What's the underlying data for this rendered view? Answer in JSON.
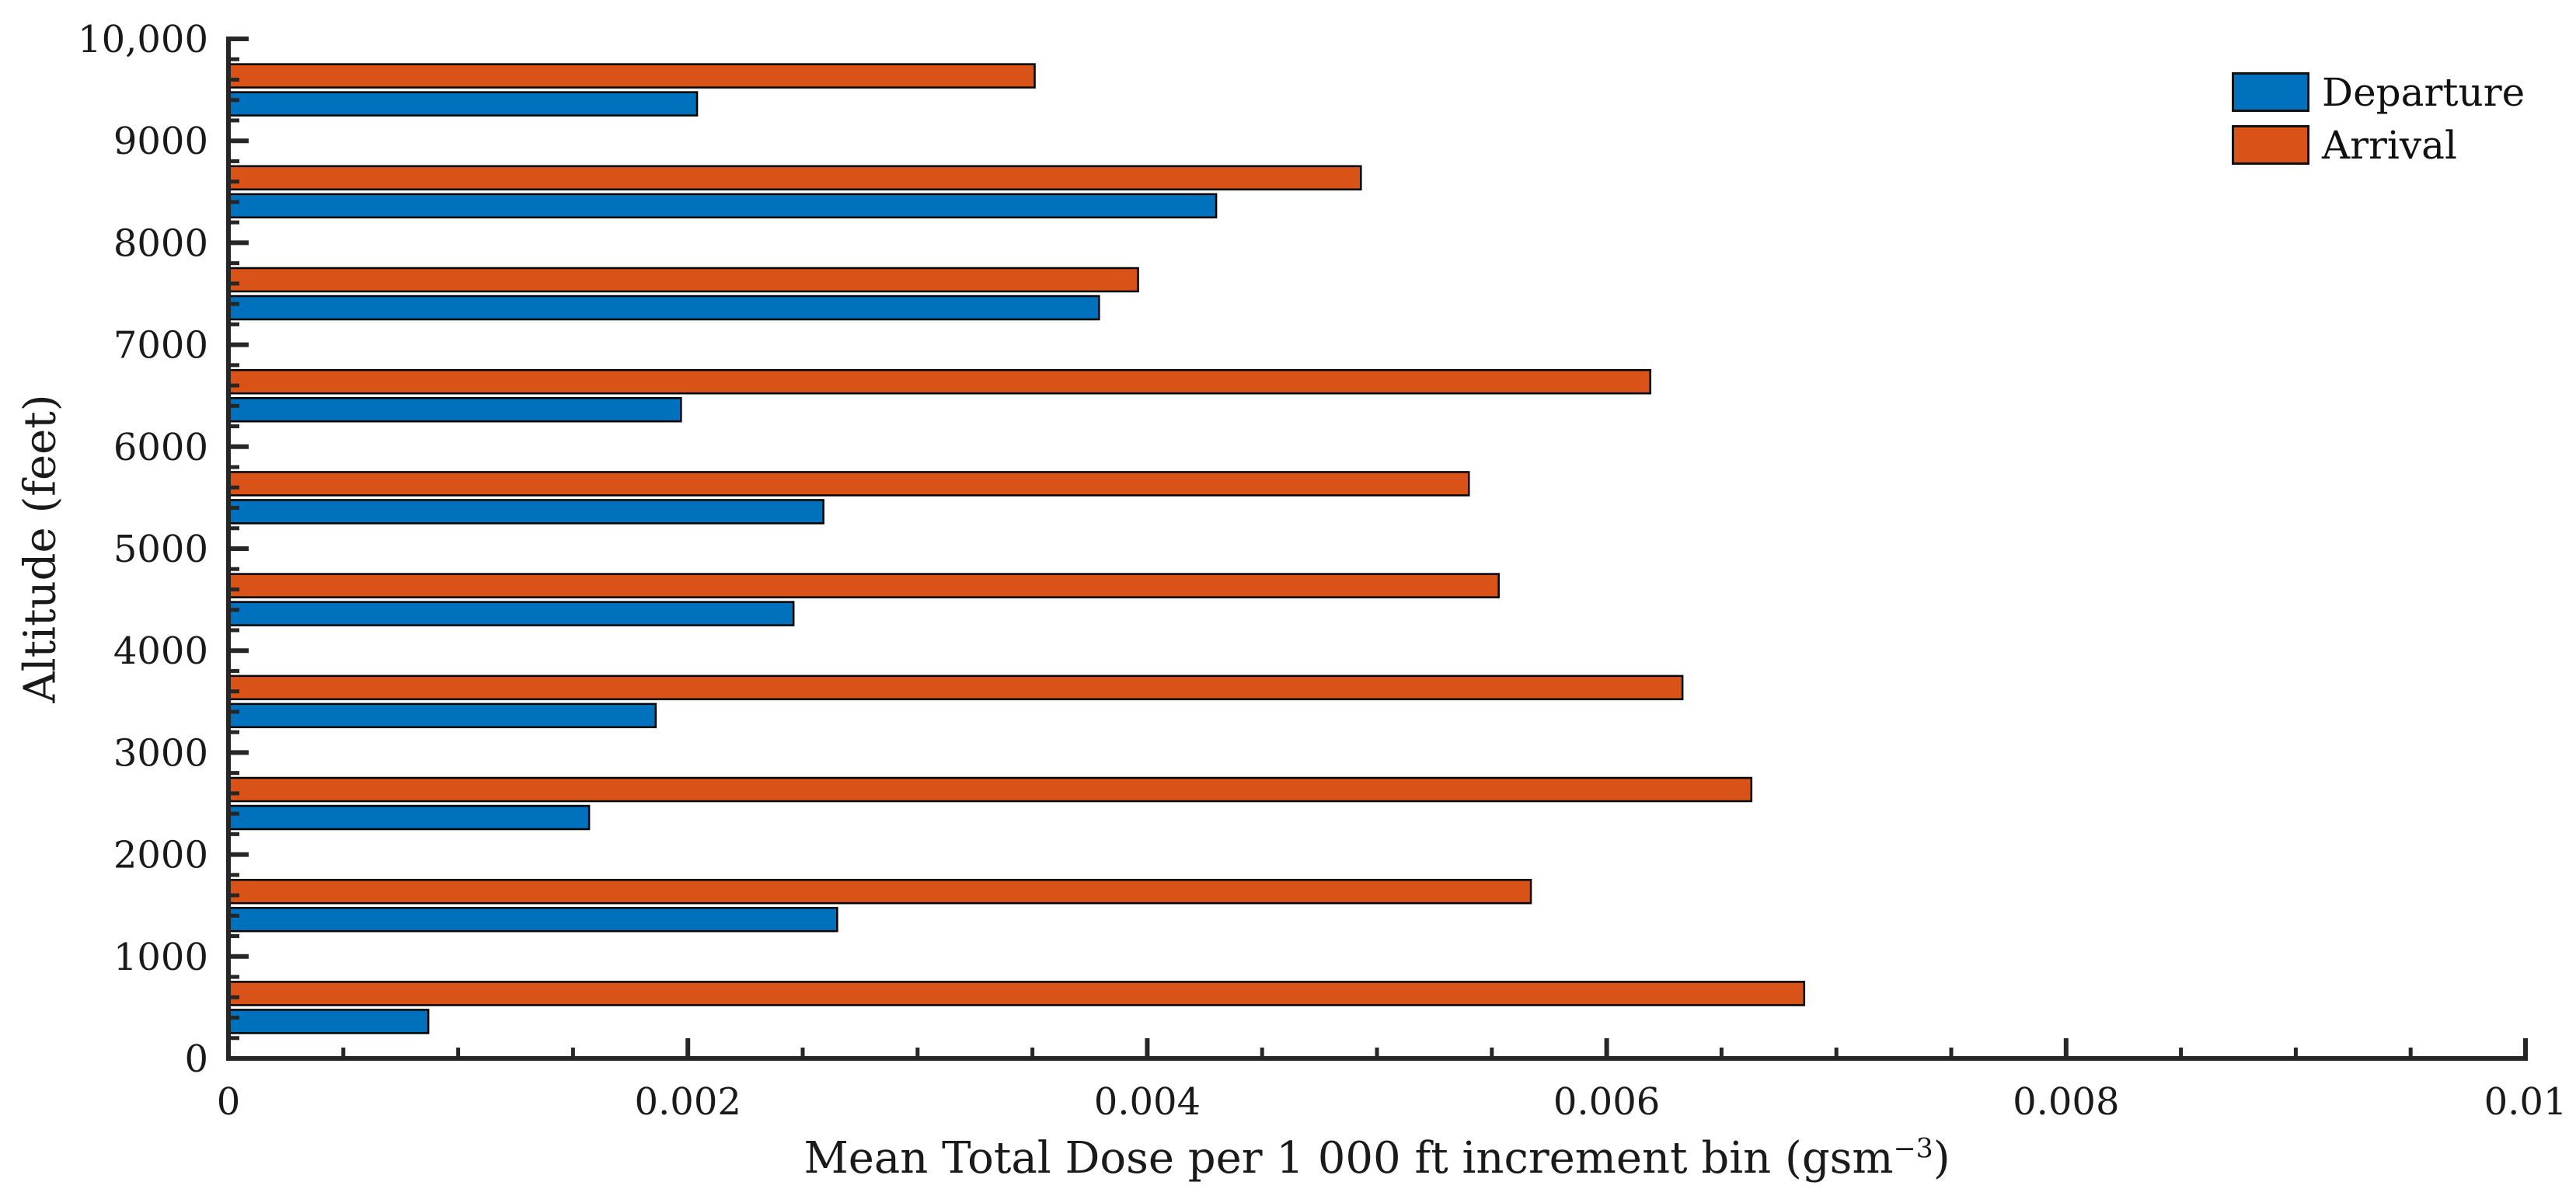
{
  "figure": {
    "background": "#ffffff",
    "axis_color": "#262626",
    "bar_edge_color": "#000000"
  },
  "legend": {
    "items": [
      {
        "label": "Departure",
        "color": "#0072BD"
      },
      {
        "label": "Arrival",
        "color": "#D95319"
      }
    ],
    "position": "top-right",
    "frame": false
  },
  "x_axis": {
    "label_prefix": "Mean Total Dose per 1 000 ft increment bin (gsm",
    "label_sup": "−3",
    "label_suffix": ")",
    "tick_labels": [
      "0",
      "0.002",
      "0.004",
      "0.006",
      "0.008",
      "0.01"
    ],
    "tick_values": [
      0,
      0.002,
      0.004,
      0.006,
      0.008,
      0.01
    ],
    "minor_tick_step": 0.0005,
    "range": [
      0,
      0.01
    ]
  },
  "y_axis": {
    "label": "Altitude (feet)",
    "tick_labels": [
      "0",
      "1000",
      "2000",
      "3000",
      "4000",
      "5000",
      "6000",
      "7000",
      "8000",
      "9000",
      "10,000"
    ],
    "tick_values": [
      0,
      1000,
      2000,
      3000,
      4000,
      5000,
      6000,
      7000,
      8000,
      9000,
      10000
    ],
    "minor_tick_step": 200,
    "range": [
      0,
      10000
    ]
  },
  "chart_data": {
    "type": "bar",
    "orientation": "horizontal",
    "title": "",
    "xlabel": "Mean Total Dose per 1 000 ft increment bin (gsm⁻³)",
    "ylabel": "Altitude (feet)",
    "xlim": [
      0,
      0.01
    ],
    "ylim": [
      0,
      10000
    ],
    "grid": false,
    "legend_position": "top-right",
    "bin_size_ft": 1000,
    "categories": [
      "0–1000",
      "1000–2000",
      "2000–3000",
      "3000–4000",
      "4000–5000",
      "5000–6000",
      "6000–7000",
      "7000–8000",
      "8000–9000",
      "9000–10,000"
    ],
    "bin_centers_ft": [
      500,
      1500,
      2500,
      3500,
      4500,
      5500,
      6500,
      7500,
      8500,
      9500
    ],
    "series": [
      {
        "name": "Departure",
        "color": "#0072BD",
        "values": [
          0.00087,
          0.00265,
          0.00157,
          0.00186,
          0.00246,
          0.00259,
          0.00197,
          0.00379,
          0.0043,
          0.00204
        ]
      },
      {
        "name": "Arrival",
        "color": "#D95319",
        "values": [
          0.00686,
          0.00567,
          0.00663,
          0.00633,
          0.00553,
          0.0054,
          0.00619,
          0.00396,
          0.00493,
          0.00351
        ]
      }
    ]
  }
}
